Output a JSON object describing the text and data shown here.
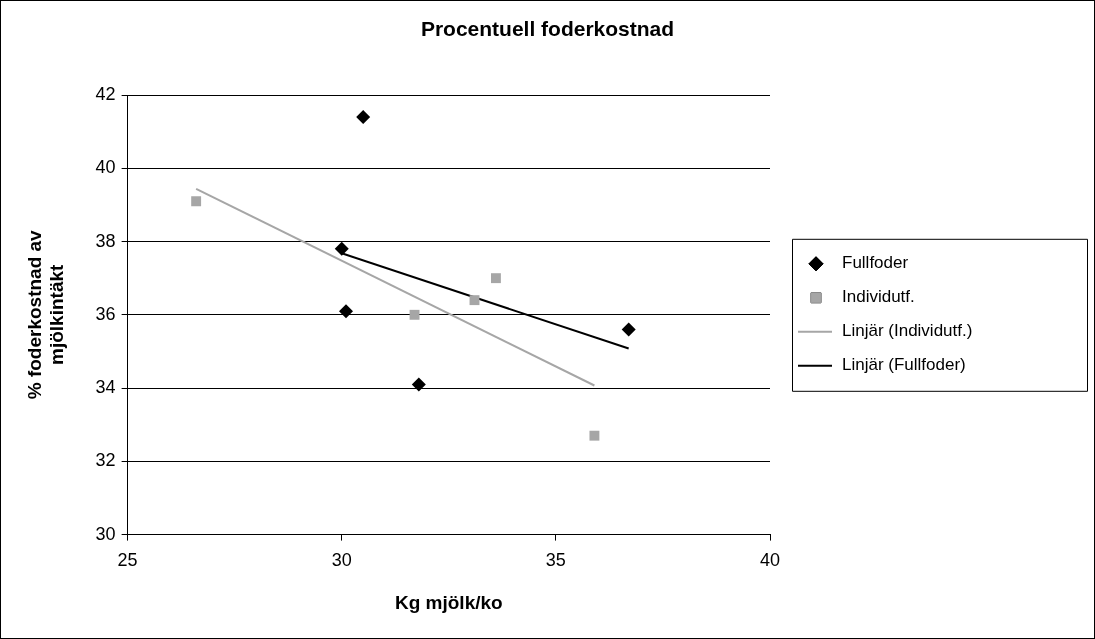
{
  "chart_data": {
    "type": "scatter",
    "title": "Procentuell foderkostnad",
    "xlabel": "Kg mjölk/ko",
    "ylabel": "% foderkostnad av mjölkintäkt",
    "xlim": [
      25,
      40
    ],
    "xticks": [
      25,
      30,
      35,
      40
    ],
    "ylim": [
      30,
      42
    ],
    "yticks": [
      30,
      32,
      34,
      36,
      38,
      40,
      42
    ],
    "grid": "y",
    "legend": "right",
    "series": [
      {
        "name": "Fullfoder",
        "color": "#000000",
        "marker": "diamond",
        "x": [
          30.5,
          30.0,
          30.1,
          31.8,
          36.7
        ],
        "values": [
          41.4,
          37.8,
          36.1,
          34.1,
          35.6
        ]
      },
      {
        "name": "Individutf.",
        "color": "#a6a6a6",
        "marker": "square",
        "x": [
          26.6,
          31.7,
          33.1,
          33.6,
          35.9
        ],
        "values": [
          39.1,
          36.0,
          36.4,
          37.0,
          32.7
        ]
      },
      {
        "name": "Linjär (Individutf.)",
        "type": "line",
        "color": "#a6a6a6",
        "marker": "none",
        "x": [
          26.6,
          35.9
        ],
        "values": [
          39.44,
          34.07
        ]
      },
      {
        "name": "Linjär (Fullfoder)",
        "type": "line",
        "color": "#000000",
        "marker": "none",
        "x": [
          30.0,
          36.7
        ],
        "values": [
          37.68,
          35.08
        ]
      }
    ]
  }
}
